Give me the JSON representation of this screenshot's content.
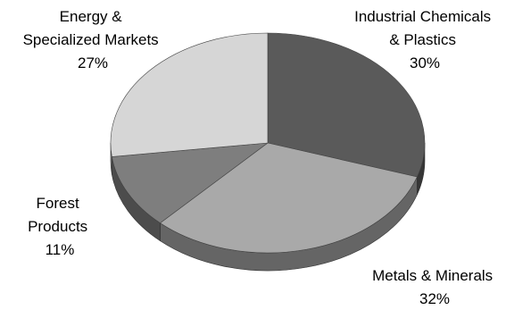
{
  "chart_data": {
    "type": "pie",
    "style": "3d",
    "legend": "none",
    "slices": [
      {
        "label_lines": [
          "Industrial Chemicals",
          "& Plastics"
        ],
        "value": 30,
        "value_label": "30%",
        "color": "#5a5a5a"
      },
      {
        "label_lines": [
          "Metals & Minerals"
        ],
        "value": 32,
        "value_label": "32%",
        "color": "#a9a9a9"
      },
      {
        "label_lines": [
          "Forest",
          "Products"
        ],
        "value": 11,
        "value_label": "11%",
        "color": "#7e7e7e"
      },
      {
        "label_lines": [
          "Energy &",
          "Specialized Markets"
        ],
        "value": 27,
        "value_label": "27%",
        "color": "#d6d6d6"
      }
    ]
  }
}
